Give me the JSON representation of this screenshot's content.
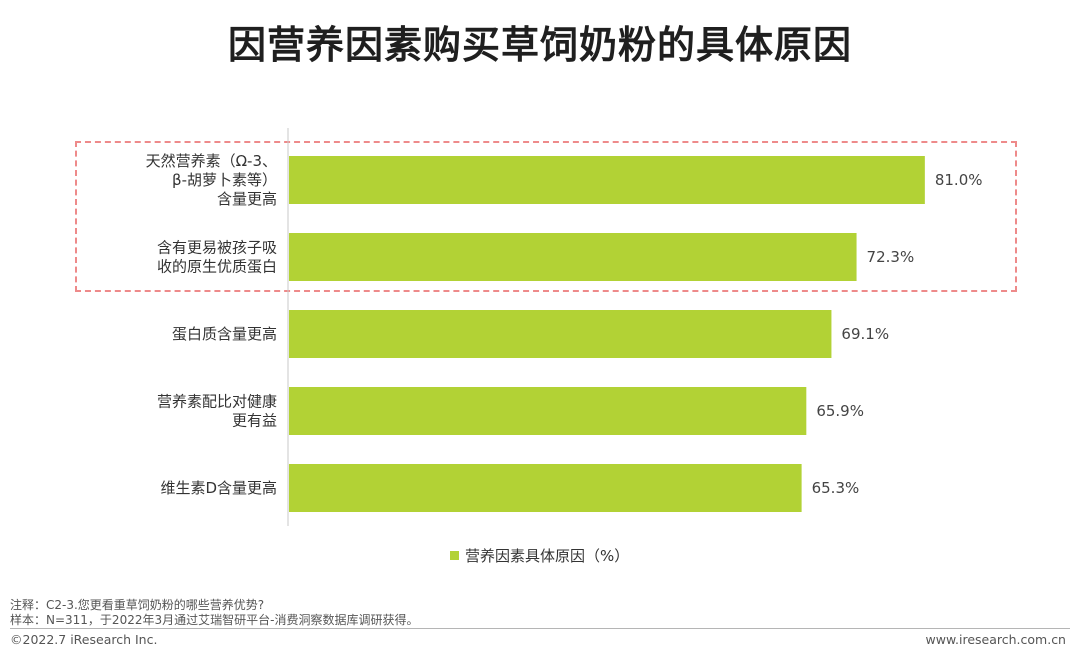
{
  "header": {
    "title": "因营养因素购买草饲奶粉的具体原因"
  },
  "chart_data": {
    "type": "bar",
    "orientation": "horizontal",
    "title": "因营养因素购买草饲奶粉的具体原因",
    "categories": [
      [
        "天然营养素（Ω-3、",
        "β-胡萝卜素等）",
        "含量更高"
      ],
      [
        "含有更易被孩子吸",
        "收的原生优质蛋白"
      ],
      [
        "蛋白质含量更高"
      ],
      [
        "营养素配比对健康",
        "更有益"
      ],
      [
        "维生素D含量更高"
      ]
    ],
    "values": [
      81.0,
      72.3,
      69.1,
      65.9,
      65.3
    ],
    "value_labels": [
      "81.0%",
      "72.3%",
      "69.1%",
      "65.9%",
      "65.3%"
    ],
    "series": [
      {
        "name": "营养因素具体原因（%）",
        "values": [
          81.0,
          72.3,
          69.1,
          65.9,
          65.3
        ]
      }
    ],
    "xlim": [
      0,
      100
    ],
    "highlighted_categories": [
      0,
      1
    ],
    "bar_color": "#b2d235",
    "highlight_color": "#ee8a8a",
    "legend_position": "bottom",
    "grid": false
  },
  "legend": {
    "label": "营养因素具体原因（%）"
  },
  "notes": {
    "line1": "注释：C2-3.您更看重草饲奶粉的哪些营养优势?",
    "line2": "样本：N=311，于2022年3月通过艾瑞智研平台-消费洞察数据库调研获得。"
  },
  "footer": {
    "copyright": "©2022.7 iResearch Inc.",
    "website": "www.iresearch.com.cn"
  }
}
